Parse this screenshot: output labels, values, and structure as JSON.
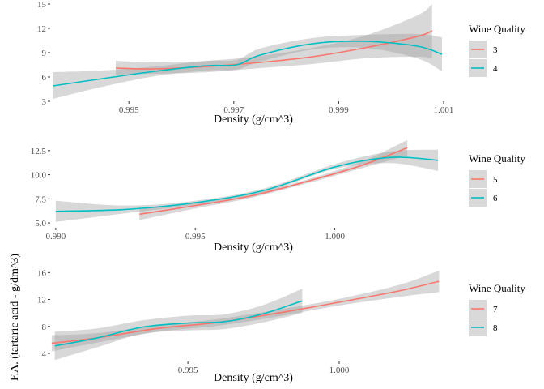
{
  "chart_data": [
    {
      "type": "line",
      "title": "",
      "xlabel": "Density (g/cm^3)",
      "ylabel": "F.A. (tartaric acid - g/dm^3)",
      "xlim": [
        0.9935,
        1.001
      ],
      "ylim": [
        3,
        15
      ],
      "xticks": [
        0.995,
        0.997,
        0.999,
        1.001
      ],
      "xtick_labels": [
        "0.995",
        "0.997",
        "0.999",
        "1.001"
      ],
      "yticks": [
        3,
        6,
        9,
        12,
        15
      ],
      "ytick_labels": [
        "3",
        "6",
        "9",
        "12",
        "15"
      ],
      "grid": false,
      "legend_title": "Wine Quality",
      "legend_position": "right",
      "series": [
        {
          "name": "3",
          "color": "#F8766D",
          "x": [
            0.99475,
            0.9955,
            0.9965,
            0.9975,
            0.9985,
            0.9995,
            1.0005,
            1.00078
          ],
          "y": [
            7.1,
            7.0,
            7.3,
            7.8,
            8.5,
            9.6,
            11.0,
            11.7
          ],
          "ci_low": [
            6.3,
            6.4,
            6.6,
            7.1,
            7.6,
            8.3,
            8.5,
            8.3
          ],
          "ci_high": [
            8.0,
            7.8,
            8.0,
            8.6,
            9.6,
            11.1,
            13.6,
            15.0
          ]
        },
        {
          "name": "4",
          "color": "#00BFC4",
          "x": [
            0.99355,
            0.9945,
            0.9955,
            0.9965,
            0.99705,
            0.9975,
            0.9985,
            0.9995,
            1.0005,
            1.00097
          ],
          "y": [
            4.9,
            5.8,
            6.7,
            7.4,
            7.5,
            8.7,
            10.1,
            10.4,
            9.8,
            8.8
          ],
          "ci_low": [
            3.3,
            4.8,
            6.1,
            6.8,
            6.9,
            7.9,
            9.4,
            9.6,
            8.3,
            6.7
          ],
          "ci_high": [
            6.6,
            6.8,
            7.3,
            8.0,
            8.1,
            9.5,
            10.8,
            11.2,
            11.3,
            10.9
          ]
        }
      ]
    },
    {
      "type": "line",
      "title": "",
      "xlabel": "Density (g/cm^3)",
      "ylabel": "F.A. (tartaric acid - g/dm^3)",
      "xlim": [
        0.9898,
        1.0039
      ],
      "ylim": [
        4.5,
        14.0
      ],
      "xticks": [
        0.99,
        0.995,
        1.0
      ],
      "xtick_labels": [
        "0.990",
        "0.995",
        "1.000"
      ],
      "yticks": [
        5.0,
        7.5,
        10.0,
        12.5
      ],
      "ytick_labels": [
        "5.0",
        "7.5",
        "10.0",
        "12.5"
      ],
      "grid": false,
      "legend_title": "Wine Quality",
      "legend_position": "right",
      "series": [
        {
          "name": "5",
          "color": "#F8766D",
          "x": [
            0.993,
            0.995,
            0.997,
            0.999,
            1.001,
            1.0026
          ],
          "y": [
            5.9,
            6.8,
            7.8,
            9.3,
            11.0,
            12.8
          ],
          "ci_low": [
            5.3,
            6.5,
            7.6,
            9.1,
            10.7,
            12.0
          ],
          "ci_high": [
            6.4,
            7.1,
            8.0,
            9.5,
            11.4,
            13.6
          ]
        },
        {
          "name": "6",
          "color": "#00BFC4",
          "x": [
            0.99,
            0.9925,
            0.995,
            0.9975,
            1.0,
            1.002,
            1.0037
          ],
          "y": [
            6.2,
            6.4,
            7.1,
            8.4,
            10.8,
            11.8,
            11.5
          ],
          "ci_low": [
            5.1,
            6.0,
            6.9,
            8.2,
            10.6,
            11.2,
            10.4
          ],
          "ci_high": [
            7.3,
            6.8,
            7.3,
            8.6,
            11.1,
            12.4,
            12.6
          ]
        }
      ]
    },
    {
      "type": "line",
      "title": "",
      "xlabel": "Density (g/cm^3)",
      "ylabel": "F.A. (tartaric acid - g/dm^3)",
      "xlim": [
        0.99045,
        1.00345
      ],
      "ylim": [
        2.8,
        17.0
      ],
      "xticks": [
        0.995,
        1.0
      ],
      "xtick_labels": [
        "0.995",
        "1.000"
      ],
      "yticks": [
        4,
        8,
        12,
        16
      ],
      "ytick_labels": [
        "4",
        "8",
        "12",
        "16"
      ],
      "grid": false,
      "legend_title": "Wine Quality",
      "legend_position": "right",
      "series": [
        {
          "name": "7",
          "color": "#F8766D",
          "x": [
            0.9905,
            0.992,
            0.994,
            0.996,
            0.998,
            1.0,
            1.002,
            1.0033
          ],
          "y": [
            5.5,
            6.3,
            7.7,
            8.6,
            10.0,
            11.6,
            13.3,
            14.7
          ],
          "ci_low": [
            4.3,
            5.6,
            7.2,
            8.1,
            9.5,
            11.1,
            12.4,
            13.1
          ],
          "ci_high": [
            6.7,
            7.0,
            8.2,
            9.1,
            10.5,
            12.1,
            14.2,
            16.3
          ]
        },
        {
          "name": "8",
          "color": "#00BFC4",
          "x": [
            0.9906,
            0.992,
            0.9935,
            0.995,
            0.9962,
            0.9975,
            0.99878
          ],
          "y": [
            5.1,
            6.3,
            7.9,
            8.5,
            8.7,
            9.9,
            11.8
          ],
          "ci_low": [
            3.0,
            4.9,
            6.9,
            7.4,
            7.6,
            8.6,
            10.0
          ],
          "ci_high": [
            7.2,
            7.7,
            8.9,
            9.6,
            9.8,
            11.2,
            13.6
          ]
        }
      ]
    }
  ]
}
